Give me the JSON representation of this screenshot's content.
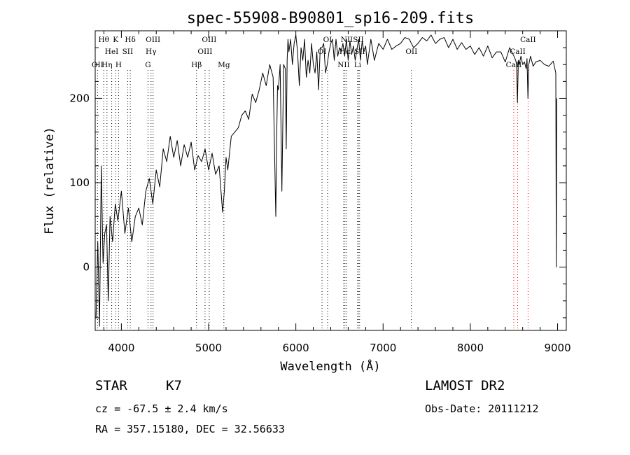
{
  "chart_data": {
    "type": "line",
    "title": "spec-55908-B90801_sp16-209.fits",
    "xlabel": "Wavelength (Å)",
    "ylabel": "Flux (relative)",
    "xlim": [
      3700,
      9100
    ],
    "ylim": [
      -75,
      280
    ],
    "xticks": [
      4000,
      5000,
      6000,
      7000,
      8000,
      9000
    ],
    "yticks": [
      0,
      100,
      200
    ],
    "grid": false,
    "legend": "none",
    "line_color": "#000000",
    "marker_color": "#000000",
    "series": [
      {
        "x": [
          3710,
          3730,
          3750,
          3770,
          3790,
          3810,
          3830,
          3850,
          3870,
          3900,
          3930,
          3960,
          4000,
          4040,
          4080,
          4120,
          4160,
          4200,
          4240,
          4280,
          4320,
          4360,
          4400,
          4440,
          4480,
          4520,
          4560,
          4600,
          4640,
          4680,
          4720,
          4760,
          4800,
          4840,
          4880,
          4920,
          4960,
          5000,
          5040,
          5080,
          5120,
          5160,
          5180,
          5200,
          5220,
          5260,
          5300,
          5340,
          5380,
          5420,
          5460,
          5500,
          5540,
          5580,
          5620,
          5660,
          5700,
          5740,
          5770,
          5780,
          5790,
          5800,
          5820,
          5840,
          5860,
          5880,
          5890,
          5900,
          5910,
          5920,
          5940,
          5960,
          5980,
          6000,
          6020,
          6040,
          6060,
          6080,
          6100,
          6120,
          6140,
          6160,
          6180,
          6200,
          6220,
          6240,
          6260,
          6280,
          6300,
          6320,
          6340,
          6360,
          6380,
          6400,
          6420,
          6440,
          6460,
          6480,
          6500,
          6520,
          6540,
          6560,
          6580,
          6600,
          6620,
          6640,
          6660,
          6680,
          6700,
          6720,
          6740,
          6760,
          6780,
          6800,
          6820,
          6840,
          6860,
          6880,
          6900,
          6950,
          7000,
          7050,
          7100,
          7150,
          7200,
          7250,
          7300,
          7350,
          7400,
          7450,
          7500,
          7550,
          7600,
          7650,
          7700,
          7750,
          7800,
          7850,
          7900,
          7950,
          8000,
          8050,
          8100,
          8150,
          8200,
          8250,
          8300,
          8350,
          8400,
          8450,
          8500,
          8520,
          8530,
          8540,
          8550,
          8560,
          8580,
          8600,
          8620,
          8640,
          8650,
          8660,
          8670,
          8690,
          8720,
          8750,
          8800,
          8850,
          8900,
          8950,
          8980,
          8985,
          8990
        ],
        "y": [
          -60,
          30,
          -70,
          120,
          5,
          40,
          50,
          -40,
          60,
          30,
          75,
          55,
          90,
          40,
          70,
          30,
          60,
          70,
          50,
          90,
          105,
          75,
          115,
          95,
          140,
          125,
          155,
          130,
          150,
          120,
          145,
          130,
          148,
          115,
          132,
          125,
          140,
          115,
          135,
          110,
          120,
          65,
          90,
          130,
          115,
          155,
          160,
          165,
          180,
          185,
          175,
          205,
          195,
          210,
          230,
          215,
          240,
          225,
          60,
          150,
          215,
          210,
          240,
          90,
          240,
          235,
          140,
          245,
          270,
          255,
          270,
          240,
          265,
          275,
          255,
          215,
          260,
          245,
          270,
          225,
          245,
          230,
          265,
          240,
          230,
          255,
          210,
          260,
          260,
          265,
          230,
          240,
          255,
          265,
          270,
          245,
          270,
          250,
          260,
          255,
          265,
          250,
          270,
          245,
          268,
          252,
          262,
          245,
          258,
          270,
          245,
          268,
          255,
          262,
          240,
          255,
          270,
          258,
          245,
          265,
          258,
          270,
          258,
          262,
          265,
          272,
          270,
          260,
          265,
          272,
          268,
          275,
          265,
          270,
          272,
          260,
          270,
          258,
          266,
          258,
          262,
          252,
          260,
          250,
          262,
          248,
          255,
          255,
          243,
          260,
          250,
          245,
          240,
          195,
          245,
          240,
          250,
          240,
          243,
          235,
          247,
          200,
          240,
          250,
          238,
          243,
          245,
          240,
          238,
          244,
          230,
          0,
          200
        ]
      }
    ],
    "line_markers": [
      {
        "label": "Hθ",
        "wavelength": 3798,
        "row": 1,
        "color": "#000000"
      },
      {
        "label": "K",
        "wavelength": 3934,
        "row": 1,
        "color": "#000000"
      },
      {
        "label": "Hδ",
        "wavelength": 4102,
        "row": 1,
        "color": "#000000"
      },
      {
        "label": "OIII",
        "wavelength": 4363,
        "row": 1,
        "color": "#000000"
      },
      {
        "label": "OIII",
        "wavelength": 5007,
        "row": 1,
        "color": "#000000"
      },
      {
        "label": "OI",
        "wavelength": 6364,
        "row": 1,
        "color": "#000000"
      },
      {
        "label": "NII",
        "wavelength": 6584,
        "row": 1,
        "color": "#000000"
      },
      {
        "label": "SII",
        "wavelength": 6717,
        "row": 1,
        "color": "#000000"
      },
      {
        "label": "CaII",
        "wavelength": 8662,
        "row": 1,
        "color": "#ff0000"
      },
      {
        "label": "HeI",
        "wavelength": 3889,
        "row": 2,
        "color": "#000000"
      },
      {
        "label": "SII",
        "wavelength": 4072,
        "row": 2,
        "color": "#000000"
      },
      {
        "label": "Hγ",
        "wavelength": 4340,
        "row": 2,
        "color": "#000000"
      },
      {
        "label": "OIII",
        "wavelength": 4959,
        "row": 2,
        "color": "#000000"
      },
      {
        "label": "OI",
        "wavelength": 6300,
        "row": 2,
        "color": "#000000"
      },
      {
        "label": "Hα",
        "wavelength": 6563,
        "row": 2,
        "color": "#000000"
      },
      {
        "label": "SII",
        "wavelength": 6731,
        "row": 2,
        "color": "#000000"
      },
      {
        "label": "OII",
        "wavelength": 7325,
        "row": 2,
        "color": "#000000"
      },
      {
        "label": "CaII",
        "wavelength": 8542,
        "row": 2,
        "color": "#ff0000"
      },
      {
        "label": "OII",
        "wavelength": 3727,
        "row": 3,
        "color": "#000000"
      },
      {
        "label": "Hη",
        "wavelength": 3835,
        "row": 3,
        "color": "#000000"
      },
      {
        "label": "H",
        "wavelength": 3968,
        "row": 3,
        "color": "#000000"
      },
      {
        "label": "G",
        "wavelength": 4305,
        "row": 3,
        "color": "#000000"
      },
      {
        "label": "Hβ",
        "wavelength": 4861,
        "row": 3,
        "color": "#000000"
      },
      {
        "label": "Mg",
        "wavelength": 5175,
        "row": 3,
        "color": "#000000"
      },
      {
        "label": "NII",
        "wavelength": 6548,
        "row": 3,
        "color": "#000000"
      },
      {
        "label": "Li",
        "wavelength": 6708,
        "row": 3,
        "color": "#000000"
      },
      {
        "label": "CaII",
        "wavelength": 8498,
        "row": 3,
        "color": "#ff0000"
      }
    ]
  },
  "info": {
    "class": "STAR",
    "subclass": "K7",
    "survey": "LAMOST DR2",
    "redshift": "cz = -67.5 ± 2.4 km/s",
    "obs_date": "Obs-Date: 20111212",
    "coords": "RA = 357.15180, DEC =  32.56633"
  }
}
